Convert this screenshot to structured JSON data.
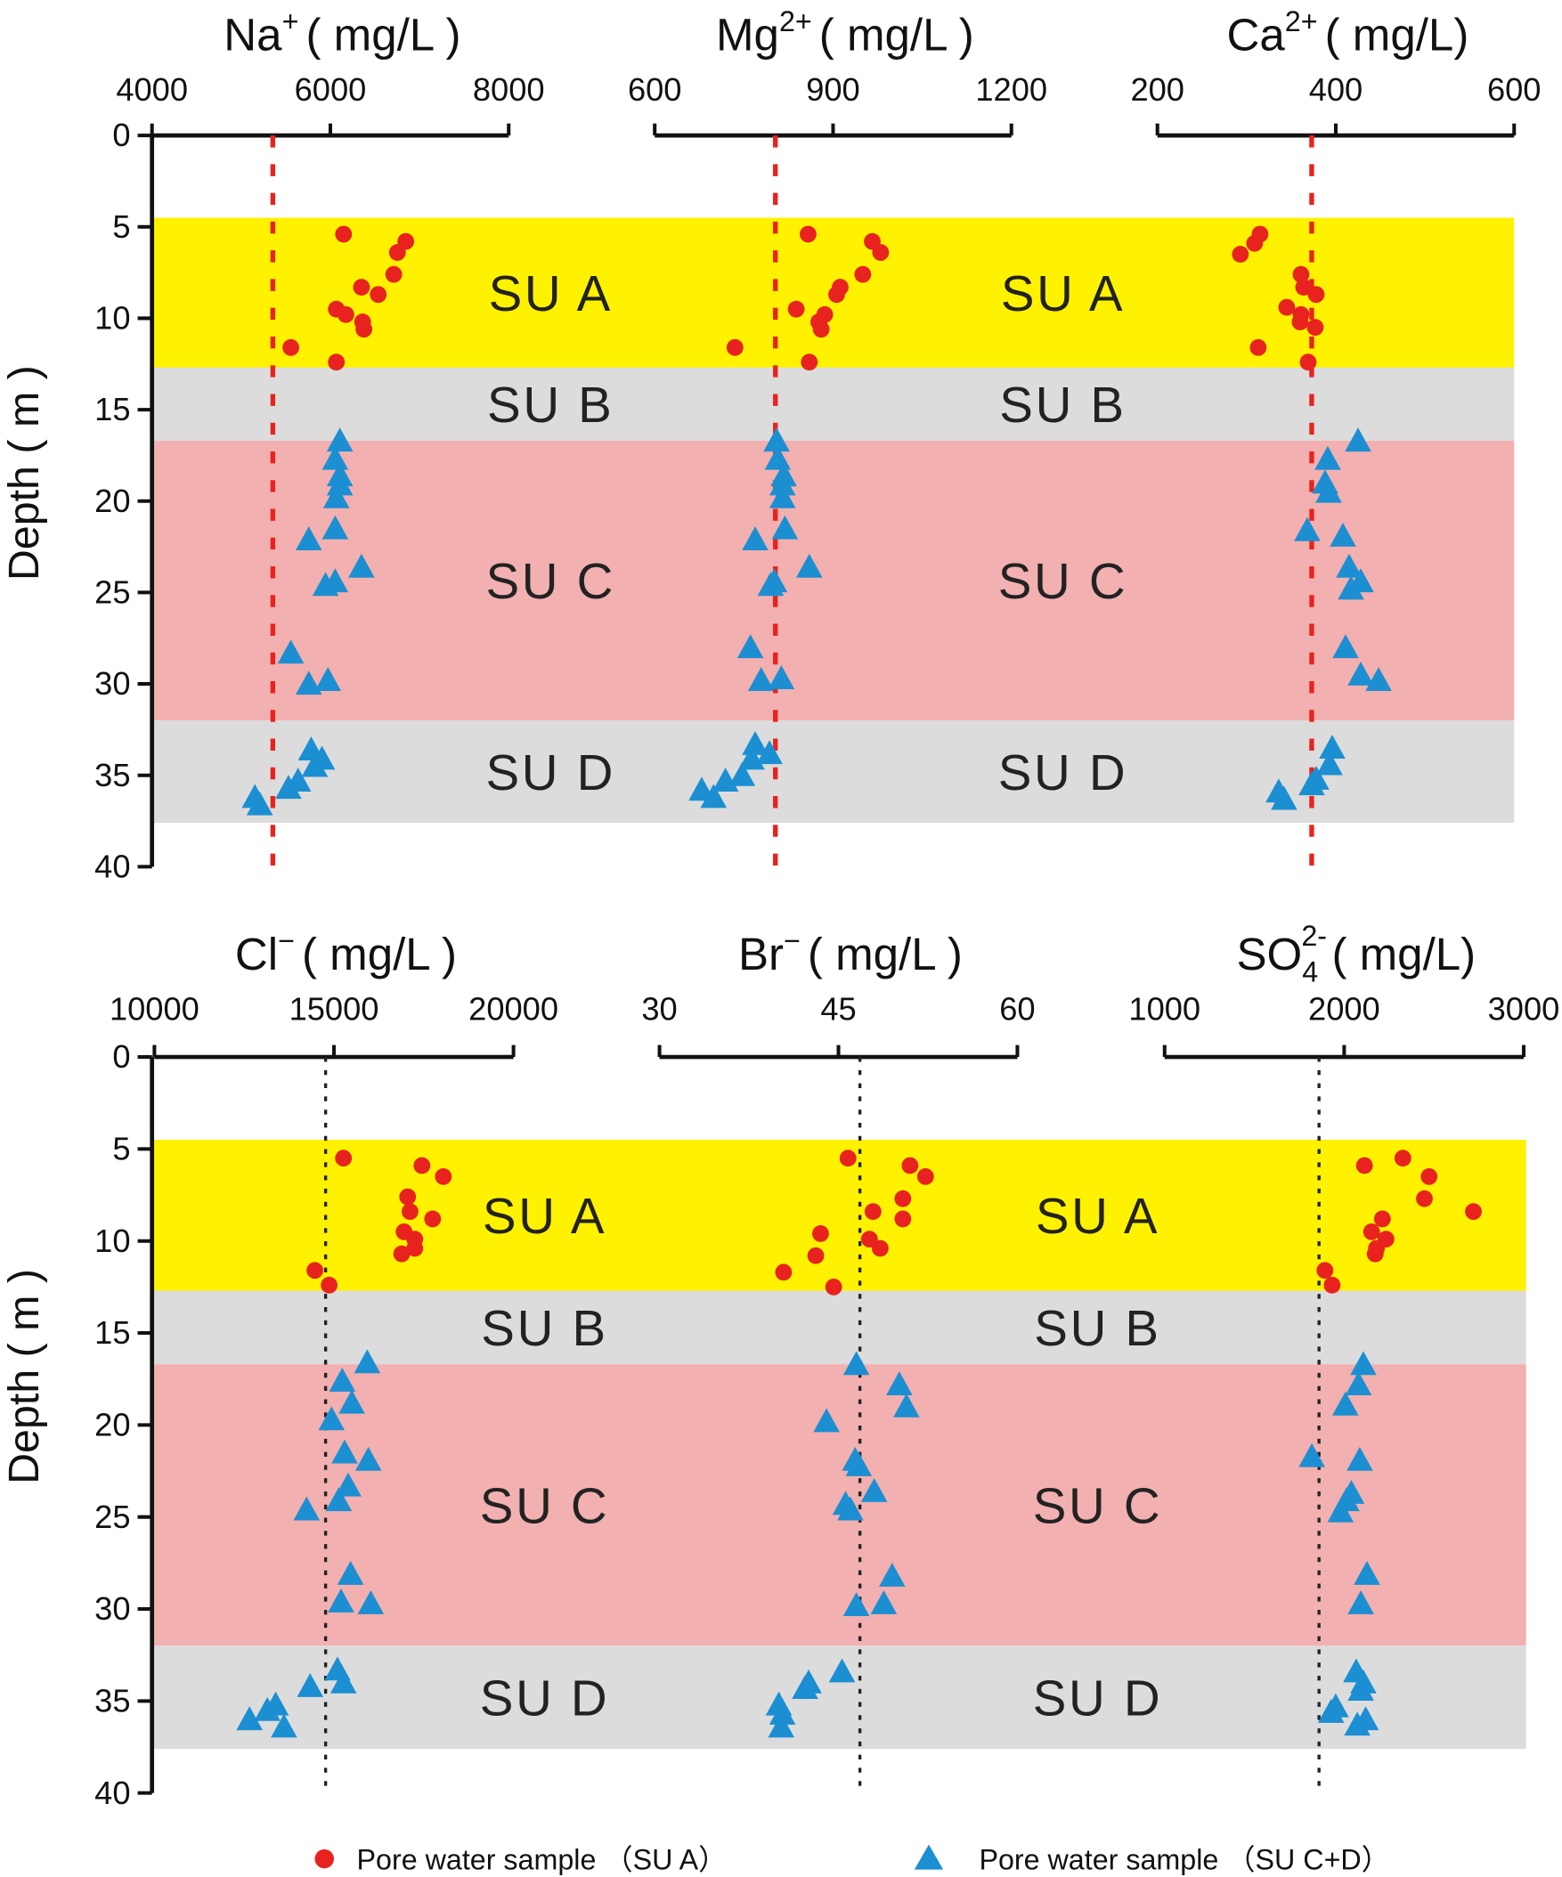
{
  "chart_data": {
    "type": "scatter",
    "ylabel": "Depth ( m )",
    "ylim": [
      0,
      40
    ],
    "yticks": [
      "0",
      "5",
      "10",
      "15",
      "20",
      "25",
      "30",
      "35",
      "40"
    ],
    "bands": [
      {
        "label": "SU A",
        "from": 4.5,
        "to": 12.7,
        "color": "#fff200"
      },
      {
        "label": "SU B",
        "from": 12.7,
        "to": 16.7,
        "color": "#dcdcdc"
      },
      {
        "label": "SU C",
        "from": 16.7,
        "to": 32.0,
        "color": "#f2b0b0"
      },
      {
        "label": "SU D",
        "from": 32.0,
        "to": 37.6,
        "color": "#dcdcdc"
      }
    ],
    "colors": {
      "su_a": "#e8231f",
      "su_cd": "#1b8fd2",
      "ref_top": "#e8231f",
      "ref_bottom": "#222222"
    },
    "legend": {
      "position": "bottom",
      "items": [
        {
          "label": "Pore water sample （SU A）",
          "marker": "circle"
        },
        {
          "label": "Pore water sample （SU C+D）",
          "marker": "triangle"
        }
      ]
    },
    "panels": [
      {
        "title": {
          "base": "Na",
          "sup": "+",
          "sub": "",
          "unit": "( mg/L )"
        },
        "xlim": [
          4000,
          8000
        ],
        "xticks": [
          "4000",
          "6000",
          "8000"
        ],
        "ref": 5355,
        "su_a": {
          "x": [
            6148,
            6846,
            6752,
            6711,
            6349,
            6537,
            6067,
            6174,
            6362,
            6376,
            5557,
            6067
          ],
          "depth": [
            5.4,
            5.8,
            6.4,
            7.6,
            8.3,
            8.7,
            9.5,
            9.8,
            10.2,
            10.6,
            11.6,
            12.4
          ]
        },
        "su_cd": {
          "x": [
            6107,
            6054,
            6107,
            6107,
            6067,
            6054,
            5758,
            6349,
            6054,
            5946,
            5557,
            5973,
            5758,
            5785,
            5906,
            5825,
            5638,
            5530,
            5154,
            5208
          ],
          "depth": [
            16.7,
            17.7,
            18.6,
            19.1,
            19.8,
            21.5,
            22.1,
            23.6,
            24.4,
            24.6,
            28.3,
            29.8,
            30.0,
            33.6,
            34.1,
            34.5,
            35.3,
            35.7,
            36.2,
            36.6
          ]
        }
      },
      {
        "title": {
          "base": "Mg",
          "sup": "2+",
          "sub": "",
          "unit": "( mg/L )"
        },
        "xlim": [
          600,
          1200
        ],
        "xticks": [
          "600",
          "900",
          "1200"
        ],
        "ref": 803,
        "su_a": {
          "x": [
            858,
            966,
            980,
            950,
            912,
            906,
            838,
            886,
            876,
            880,
            735,
            860
          ],
          "depth": [
            5.4,
            5.8,
            6.4,
            7.6,
            8.3,
            8.7,
            9.5,
            9.8,
            10.2,
            10.6,
            11.6,
            12.4
          ]
        },
        "su_cd": {
          "x": [
            805,
            807,
            817,
            815,
            815,
            819,
            769,
            860,
            801,
            795,
            761,
            779,
            813,
            769,
            793,
            763,
            747,
            719,
            679,
            699
          ],
          "depth": [
            16.7,
            17.7,
            18.6,
            19.1,
            19.8,
            21.5,
            22.1,
            23.6,
            24.4,
            24.6,
            28.0,
            29.8,
            29.7,
            33.3,
            33.8,
            34.1,
            35.0,
            35.3,
            35.8,
            36.2
          ]
        }
      },
      {
        "title": {
          "base": "Ca",
          "sup": "2+",
          "sub": "",
          "unit": "( mg/L)"
        },
        "xlim": [
          200,
          600
        ],
        "xticks": [
          "200",
          "400",
          "600"
        ],
        "ref": 373,
        "su_a": {
          "x": [
            315,
            309,
            293,
            361,
            364,
            378,
            345,
            361,
            377,
            360,
            313,
            369
          ],
          "depth": [
            5.4,
            5.9,
            6.5,
            7.6,
            8.3,
            8.7,
            9.4,
            9.8,
            10.5,
            10.2,
            11.6,
            12.4
          ]
        },
        "su_cd": {
          "x": [
            425,
            391,
            388,
            392,
            368,
            408,
            415,
            428,
            417,
            411,
            428,
            448,
            396,
            393,
            378,
            373,
            336,
            342
          ],
          "depth": [
            16.7,
            17.7,
            19.0,
            19.5,
            21.6,
            21.9,
            23.6,
            24.4,
            24.8,
            28.0,
            29.5,
            29.8,
            33.5,
            34.4,
            35.2,
            35.5,
            35.9,
            36.3
          ]
        }
      },
      {
        "title": {
          "base": "Cl",
          "sup": "−",
          "sub": "",
          "unit": "( mg/L )"
        },
        "xlim": [
          10000,
          20000
        ],
        "xticks": [
          "10000",
          "15000",
          "20000"
        ],
        "ref": 14768,
        "su_a": {
          "x": [
            15265,
            17450,
            18046,
            17053,
            17119,
            17748,
            16953,
            17251,
            17251,
            16887,
            14470,
            14867
          ],
          "depth": [
            5.5,
            5.9,
            6.5,
            7.6,
            8.4,
            8.8,
            9.5,
            9.9,
            10.4,
            10.7,
            11.6,
            12.4
          ]
        },
        "su_cd": {
          "x": [
            15927,
            15231,
            15496,
            14933,
            15298,
            15960,
            15397,
            15132,
            14238,
            15463,
            15198,
            16026,
            15099,
            15265,
            14337,
            13377,
            13145,
            12649,
            13609
          ],
          "depth": [
            16.6,
            17.6,
            18.8,
            19.7,
            21.5,
            21.9,
            23.3,
            24.1,
            24.6,
            28.1,
            29.6,
            29.7,
            33.3,
            34.0,
            34.2,
            35.2,
            35.5,
            36.0,
            36.4
          ]
        }
      },
      {
        "title": {
          "base": "Br",
          "sup": "−",
          "sub": "",
          "unit": "( mg/L )"
        },
        "xlim": [
          30,
          60
        ],
        "xticks": [
          "30",
          "45",
          "60"
        ],
        "ref": 46.8,
        "su_a": {
          "x": [
            45.8,
            51.0,
            52.3,
            50.4,
            47.9,
            50.4,
            43.5,
            47.6,
            48.5,
            43.1,
            40.4,
            44.6
          ],
          "depth": [
            5.5,
            5.9,
            6.5,
            7.7,
            8.4,
            8.8,
            9.6,
            9.9,
            10.4,
            10.8,
            11.7,
            12.5
          ]
        },
        "su_cd": {
          "x": [
            46.5,
            50.1,
            50.7,
            44.0,
            46.4,
            46.7,
            48.0,
            45.6,
            46.0,
            49.5,
            48.8,
            46.5,
            45.3,
            42.5,
            42.2,
            40.0,
            40.3,
            40.2
          ],
          "depth": [
            16.7,
            17.8,
            19.0,
            19.8,
            21.9,
            22.2,
            23.6,
            24.3,
            24.6,
            28.2,
            29.7,
            29.8,
            33.4,
            34.0,
            34.3,
            35.2,
            35.7,
            36.4
          ]
        }
      },
      {
        "title": {
          "base": "SO",
          "sup": "2-",
          "sub": "4",
          "unit": "( mg/L)"
        },
        "xlim": [
          1000,
          3000
        ],
        "xticks": [
          "1000",
          "2000",
          "3000"
        ],
        "ref": 1860,
        "su_a": {
          "x": [
            2327,
            2113,
            2473,
            2447,
            2720,
            2213,
            2153,
            2233,
            2180,
            2173,
            1893,
            1933
          ],
          "depth": [
            5.5,
            5.9,
            6.5,
            7.7,
            8.4,
            8.8,
            9.5,
            9.9,
            10.4,
            10.7,
            11.6,
            12.4
          ]
        },
        "su_cd": {
          "x": [
            2107,
            2080,
            2007,
            1820,
            2087,
            2040,
            2013,
            1980,
            2127,
            2093,
            2067,
            2107,
            2093,
            1953,
            1927,
            2073,
            2120
          ],
          "depth": [
            16.7,
            17.8,
            18.9,
            21.7,
            21.9,
            23.7,
            24.1,
            24.7,
            28.1,
            29.7,
            33.4,
            34.0,
            34.4,
            35.3,
            35.6,
            36.3,
            36.0
          ]
        }
      }
    ]
  }
}
